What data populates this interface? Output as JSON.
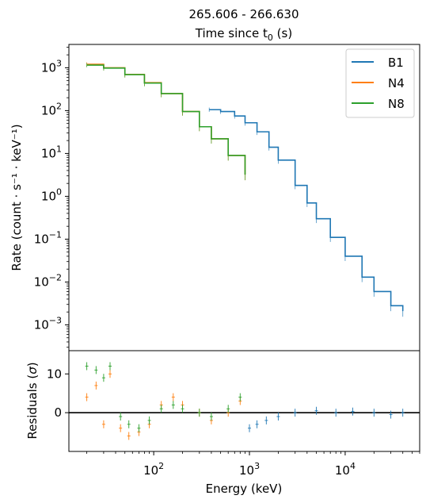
{
  "chart_data": [
    {
      "type": "line",
      "panel": "spectrum",
      "title_line1": "265.606 - 266.630",
      "title_line2_main": "Time since t",
      "title_line2_sub": "0",
      "title_line2_tail": " (s)",
      "ylabel": "Rate (count · s⁻¹ · keV⁻¹)",
      "x_scale": "log",
      "y_scale": "log",
      "xlim": [
        13,
        60000
      ],
      "ylim": [
        0.00025,
        3500
      ],
      "x_ticks": [
        {
          "value": 100,
          "base": "10",
          "exp": "2"
        },
        {
          "value": 1000,
          "base": "10",
          "exp": "3"
        },
        {
          "value": 10000,
          "base": "10",
          "exp": "4"
        }
      ],
      "y_ticks": [
        {
          "value": 1000,
          "base": "10",
          "exp": "3"
        },
        {
          "value": 100,
          "base": "10",
          "exp": "2"
        },
        {
          "value": 10,
          "base": "10",
          "exp": "1"
        },
        {
          "value": 1,
          "base": "10",
          "exp": "0"
        },
        {
          "value": 0.1,
          "base": "10",
          "exp": "−1"
        },
        {
          "value": 0.01,
          "base": "10",
          "exp": "−2"
        },
        {
          "value": 0.001,
          "base": "10",
          "exp": "−3"
        }
      ],
      "legend_position": "top-right",
      "series": [
        {
          "name": "B1",
          "color": "#1f77b4",
          "x": [
            380,
            500,
            700,
            900,
            1200,
            1600,
            2000,
            3000,
            4000,
            5000,
            7000,
            10000,
            15000,
            20000,
            30000,
            40000
          ],
          "y": [
            105,
            95,
            75,
            52,
            32,
            14,
            7,
            1.8,
            0.7,
            0.3,
            0.11,
            0.04,
            0.013,
            0.006,
            0.0028,
            0.0021
          ]
        },
        {
          "name": "N4",
          "color": "#ff7f0e",
          "x": [
            20,
            30,
            50,
            80,
            120,
            200,
            300,
            400,
            600,
            900
          ],
          "y": [
            1200,
            1000,
            700,
            450,
            250,
            95,
            42,
            22,
            9,
            3.2
          ]
        },
        {
          "name": "N8",
          "color": "#2ca02c",
          "x": [
            20,
            30,
            50,
            80,
            120,
            200,
            300,
            400,
            600,
            900
          ],
          "y": [
            1150,
            980,
            690,
            440,
            250,
            95,
            42,
            22,
            9,
            3.2
          ]
        }
      ]
    },
    {
      "type": "scatter",
      "panel": "residuals",
      "xlabel": "Energy (keV)",
      "ylabel_main": "Residuals (",
      "ylabel_sym": "σ",
      "ylabel_tail": ")",
      "x_scale": "log",
      "xlim": [
        13,
        60000
      ],
      "ylim": [
        -10,
        16
      ],
      "y_ticks": [
        {
          "value": 10,
          "label": "10"
        },
        {
          "value": 0,
          "label": "0"
        }
      ],
      "series": [
        {
          "name": "B1",
          "color": "#1f77b4",
          "x": [
            1000,
            1200,
            1500,
            2000,
            3000,
            5000,
            8000,
            12000,
            20000,
            30000,
            40000
          ],
          "y": [
            -4,
            -3,
            -2,
            -1,
            0,
            0.5,
            0,
            0.3,
            0,
            -0.5,
            0
          ]
        },
        {
          "name": "N4",
          "color": "#ff7f0e",
          "x": [
            20,
            25,
            30,
            35,
            45,
            55,
            70,
            90,
            120,
            160,
            200,
            300,
            400,
            600,
            800
          ],
          "y": [
            4,
            7,
            -3,
            10,
            -4,
            -6,
            -5,
            -3,
            2,
            4,
            2,
            0,
            -2,
            0,
            3
          ]
        },
        {
          "name": "N8",
          "color": "#2ca02c",
          "x": [
            20,
            25,
            30,
            35,
            45,
            55,
            70,
            90,
            120,
            160,
            200,
            300,
            400,
            600,
            800
          ],
          "y": [
            12,
            11,
            9,
            12,
            -1,
            -3,
            -4,
            -2,
            1,
            2,
            1,
            0,
            -1,
            1,
            4
          ]
        }
      ]
    }
  ]
}
